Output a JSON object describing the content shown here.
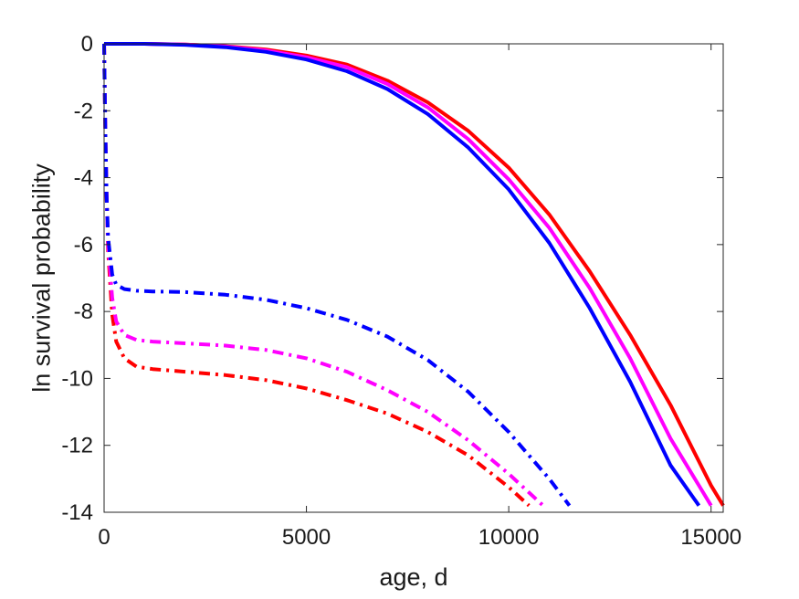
{
  "chart_data": {
    "type": "line",
    "title": "",
    "xlabel": "age, d",
    "ylabel": "ln survival probability",
    "xlim": [
      0,
      15300
    ],
    "ylim": [
      -14,
      0
    ],
    "xticks": [
      0,
      5000,
      10000,
      15000
    ],
    "xtick_labels": [
      "0",
      "5000",
      "10000",
      "15000"
    ],
    "yticks": [
      0,
      -2,
      -4,
      -6,
      -8,
      -10,
      -12,
      -14
    ],
    "ytick_labels": [
      "0",
      "-2",
      "-4",
      "-6",
      "-8",
      "-10",
      "-12",
      "-14"
    ],
    "grid": false,
    "legend": "none",
    "series": [
      {
        "color": "#ff0000",
        "style": "solid",
        "x": [
          0,
          1000,
          2000,
          3000,
          4000,
          5000,
          6000,
          7000,
          8000,
          9000,
          10000,
          11000,
          12000,
          13000,
          14000,
          15000,
          15300
        ],
        "y": [
          0,
          0,
          -0.02,
          -0.07,
          -0.17,
          -0.35,
          -0.62,
          -1.1,
          -1.75,
          -2.6,
          -3.7,
          -5.1,
          -6.8,
          -8.7,
          -10.8,
          -13.2,
          -13.8
        ]
      },
      {
        "color": "#ff00ff",
        "style": "solid",
        "x": [
          0,
          1000,
          2000,
          3000,
          4000,
          5000,
          6000,
          7000,
          8000,
          9000,
          10000,
          11000,
          12000,
          13000,
          14000,
          15000
        ],
        "y": [
          0,
          0,
          -0.02,
          -0.08,
          -0.2,
          -0.4,
          -0.7,
          -1.2,
          -1.9,
          -2.85,
          -4.05,
          -5.5,
          -7.3,
          -9.4,
          -11.8,
          -13.8
        ]
      },
      {
        "color": "#0000ff",
        "style": "solid",
        "x": [
          0,
          1000,
          2000,
          3000,
          4000,
          5000,
          6000,
          7000,
          8000,
          9000,
          10000,
          11000,
          12000,
          13000,
          14000,
          14700
        ],
        "y": [
          0,
          0,
          -0.03,
          -0.1,
          -0.24,
          -0.47,
          -0.82,
          -1.35,
          -2.1,
          -3.1,
          -4.35,
          -5.95,
          -7.9,
          -10.1,
          -12.6,
          -13.8
        ]
      },
      {
        "color": "#ff0000",
        "style": "dashdot",
        "x": [
          0,
          30,
          60,
          100,
          200,
          300,
          500,
          800,
          1200,
          2000,
          3000,
          4000,
          5000,
          6000,
          7000,
          8000,
          9000,
          10000,
          10500
        ],
        "y": [
          0,
          -2.5,
          -4.5,
          -6.2,
          -8.1,
          -8.9,
          -9.4,
          -9.65,
          -9.72,
          -9.8,
          -9.9,
          -10.05,
          -10.3,
          -10.65,
          -11.05,
          -11.6,
          -12.3,
          -13.25,
          -13.8
        ]
      },
      {
        "color": "#ff00ff",
        "style": "dashdot",
        "x": [
          0,
          30,
          60,
          100,
          200,
          300,
          500,
          800,
          1200,
          2000,
          3000,
          4000,
          5000,
          6000,
          7000,
          8000,
          9000,
          10000,
          10850
        ],
        "y": [
          0,
          -2.5,
          -4.5,
          -6.0,
          -7.6,
          -8.3,
          -8.7,
          -8.85,
          -8.9,
          -8.95,
          -9.02,
          -9.15,
          -9.4,
          -9.8,
          -10.35,
          -11.0,
          -11.85,
          -12.85,
          -13.8
        ]
      },
      {
        "color": "#0000ff",
        "style": "dashdot",
        "x": [
          0,
          30,
          60,
          100,
          200,
          300,
          500,
          800,
          1200,
          2000,
          3000,
          4000,
          5000,
          6000,
          7000,
          8000,
          9000,
          10000,
          11000,
          11500
        ],
        "y": [
          0,
          -2.5,
          -4.5,
          -5.8,
          -6.9,
          -7.2,
          -7.33,
          -7.38,
          -7.4,
          -7.42,
          -7.5,
          -7.65,
          -7.9,
          -8.25,
          -8.75,
          -9.45,
          -10.4,
          -11.6,
          -13.0,
          -13.8
        ]
      }
    ]
  }
}
